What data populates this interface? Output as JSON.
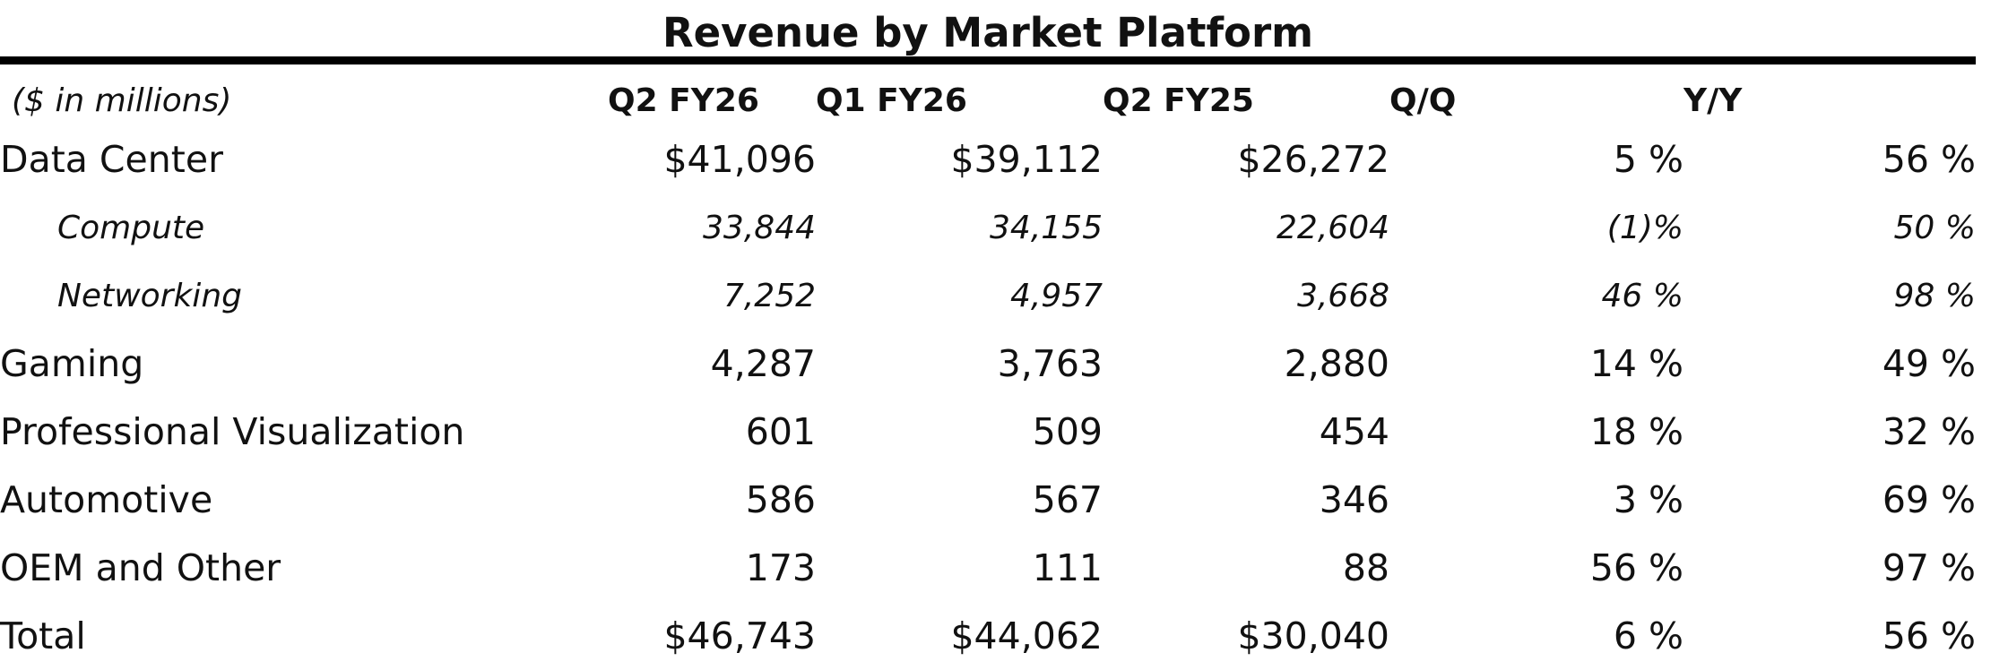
{
  "title": "Revenue by Market Platform",
  "table": {
    "units_label": "($ in millions)",
    "columns": [
      "Q2 FY26",
      "Q1 FY26",
      "Q2 FY25",
      "Q/Q",
      "Y/Y"
    ],
    "rows": [
      {
        "label": "Data Center",
        "values": [
          "$41,096",
          "$39,112",
          "$26,272",
          "5 %",
          "56 %"
        ]
      },
      {
        "label": "Compute",
        "values": [
          "33,844",
          "34,155",
          "22,604",
          "(1)%",
          "50 %"
        ]
      },
      {
        "label": "Networking",
        "values": [
          "7,252",
          "4,957",
          "3,668",
          "46 %",
          "98 %"
        ]
      },
      {
        "label": "Gaming",
        "values": [
          "4,287",
          "3,763",
          "2,880",
          "14 %",
          "49 %"
        ]
      },
      {
        "label": "Professional Visualization",
        "values": [
          "601",
          "509",
          "454",
          "18 %",
          "32 %"
        ]
      },
      {
        "label": "Automotive",
        "values": [
          "586",
          "567",
          "346",
          "3 %",
          "69 %"
        ]
      },
      {
        "label": "OEM and Other",
        "values": [
          "173",
          "111",
          "88",
          "56 %",
          "97 %"
        ]
      },
      {
        "label": "Total",
        "values": [
          "$46,743",
          "$44,062",
          "$30,040",
          "6 %",
          "56 %"
        ]
      }
    ]
  }
}
